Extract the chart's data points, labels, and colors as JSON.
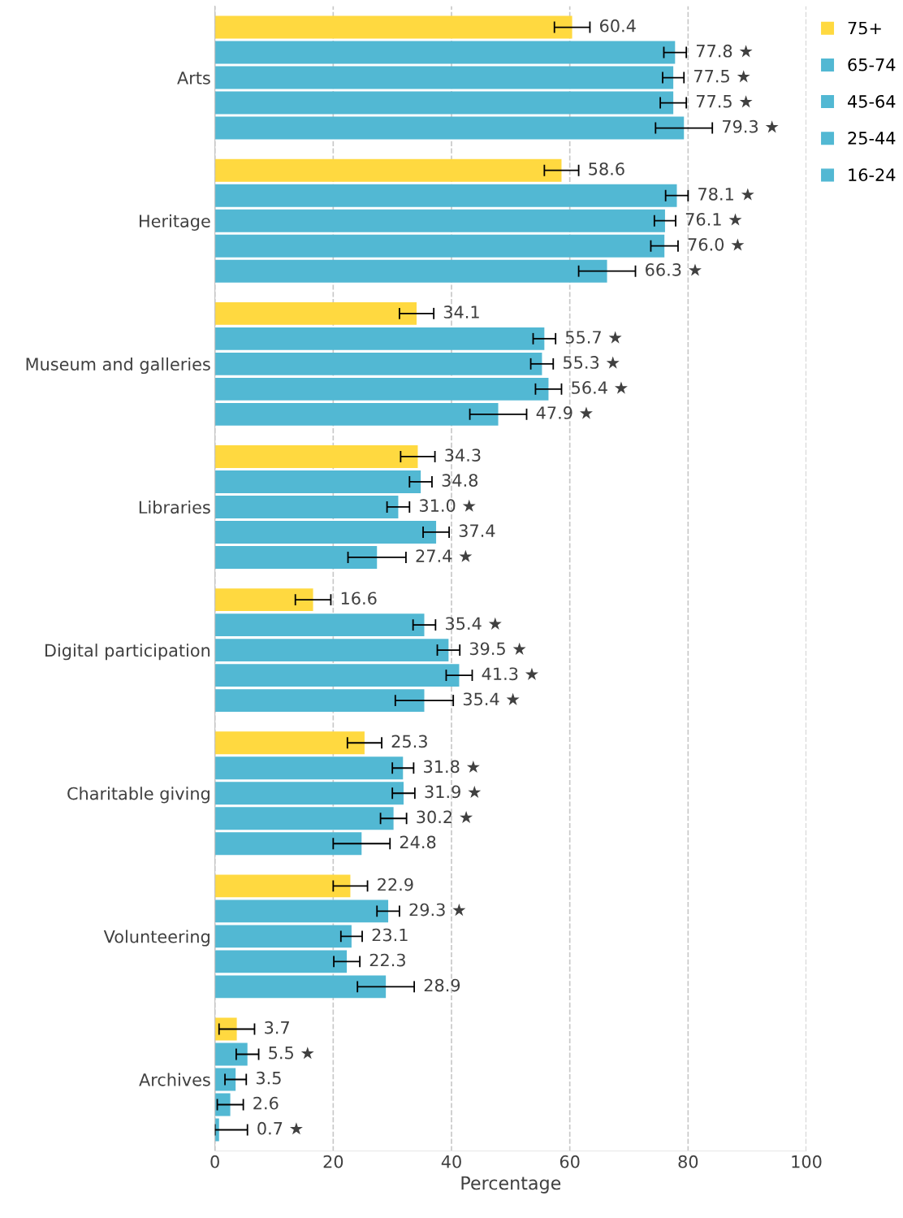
{
  "chart_data": {
    "type": "bar",
    "orientation": "horizontal",
    "xlabel": "Percentage",
    "categories": [
      "Arts",
      "Heritage",
      "Museum and galleries",
      "Libraries",
      "Digital participation",
      "Charitable giving",
      "Volunteering",
      "Archives"
    ],
    "series": [
      {
        "name": "75+",
        "color": "#ffd940",
        "values": [
          60.4,
          58.6,
          34.1,
          34.3,
          16.6,
          25.3,
          22.9,
          3.7
        ],
        "errors": [
          3.0,
          2.9,
          2.9,
          2.9,
          3.0,
          2.9,
          2.9,
          3.0
        ],
        "value_labels": [
          "60.4",
          "58.6",
          "34.1",
          "34.3",
          "16.6",
          "25.3",
          "22.9",
          "3.7"
        ]
      },
      {
        "name": "65-74",
        "color": "#52b8d3",
        "values": [
          77.8,
          78.1,
          55.7,
          34.8,
          35.4,
          31.8,
          29.3,
          5.5
        ],
        "errors": [
          1.9,
          1.9,
          1.9,
          1.9,
          1.9,
          1.8,
          1.9,
          1.9
        ],
        "value_labels": [
          "77.8 ★",
          "78.1 ★",
          "55.7 ★",
          "34.8",
          "35.4 ★",
          "31.8 ★",
          "29.3 ★",
          "5.5 ★"
        ]
      },
      {
        "name": "45-64",
        "color": "#52b8d3",
        "values": [
          77.5,
          76.1,
          55.3,
          31.0,
          39.5,
          31.9,
          23.1,
          3.5
        ],
        "errors": [
          1.8,
          1.8,
          1.9,
          1.9,
          1.9,
          1.9,
          1.8,
          1.8
        ],
        "value_labels": [
          "77.5 ★",
          "76.1 ★",
          "55.3 ★",
          "31.0 ★",
          "39.5 ★",
          "31.9 ★",
          "23.1",
          "3.5"
        ]
      },
      {
        "name": "25-44",
        "color": "#52b8d3",
        "values": [
          77.5,
          76.0,
          56.4,
          37.4,
          41.3,
          30.2,
          22.3,
          2.6
        ],
        "errors": [
          2.2,
          2.3,
          2.2,
          2.2,
          2.2,
          2.2,
          2.2,
          2.2
        ],
        "value_labels": [
          "77.5 ★",
          "76.0 ★",
          "56.4 ★",
          "37.4",
          "41.3 ★",
          "30.2 ★",
          "22.3",
          "2.6"
        ]
      },
      {
        "name": "16-24",
        "color": "#52b8d3",
        "values": [
          79.3,
          66.3,
          47.9,
          27.4,
          35.4,
          24.8,
          28.9,
          0.7
        ],
        "errors": [
          4.8,
          4.8,
          4.8,
          4.9,
          4.9,
          4.8,
          4.8,
          [
            0.0,
            5.5
          ]
        ],
        "value_labels": [
          "79.3 ★",
          "66.3 ★",
          "47.9 ★",
          "27.4 ★",
          "35.4 ★",
          "24.8",
          "28.9",
          "0.7 ★"
        ]
      }
    ],
    "xlim": [
      0,
      100
    ],
    "xticks": [
      0,
      20,
      40,
      60,
      80,
      100
    ],
    "grid": "x",
    "legend": "top right"
  }
}
